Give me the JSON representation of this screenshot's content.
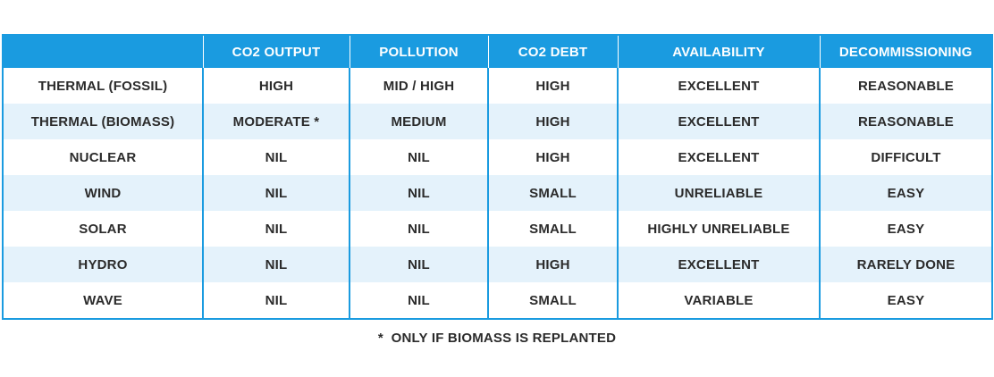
{
  "table": {
    "headers": [
      "",
      "CO2 OUTPUT",
      "POLLUTION",
      "CO2 DEBT",
      "AVAILABILITY",
      "DECOMMISSIONING"
    ],
    "rows": [
      [
        "THERMAL (FOSSIL)",
        "HIGH",
        "MID / HIGH",
        "HIGH",
        "EXCELLENT",
        "REASONABLE"
      ],
      [
        "THERMAL (BIOMASS)",
        "MODERATE *",
        "MEDIUM",
        "HIGH",
        "EXCELLENT",
        "REASONABLE"
      ],
      [
        "NUCLEAR",
        "NIL",
        "NIL",
        "HIGH",
        "EXCELLENT",
        "DIFFICULT"
      ],
      [
        "WIND",
        "NIL",
        "NIL",
        "SMALL",
        "UNRELIABLE",
        "EASY"
      ],
      [
        "SOLAR",
        "NIL",
        "NIL",
        "SMALL",
        "HIGHLY UNRELIABLE",
        "EASY"
      ],
      [
        "HYDRO",
        "NIL",
        "NIL",
        "HIGH",
        "EXCELLENT",
        "RARELY DONE"
      ],
      [
        "WAVE",
        "NIL",
        "NIL",
        "SMALL",
        "VARIABLE",
        "EASY"
      ]
    ]
  },
  "footnote": "*  ONLY IF BIOMASS IS REPLANTED",
  "colors": {
    "header_bg": "#1a9be0",
    "header_text": "#ffffff",
    "alt_row_bg": "#e4f2fb",
    "border": "#1a9be0",
    "text": "#2b2b2b"
  }
}
